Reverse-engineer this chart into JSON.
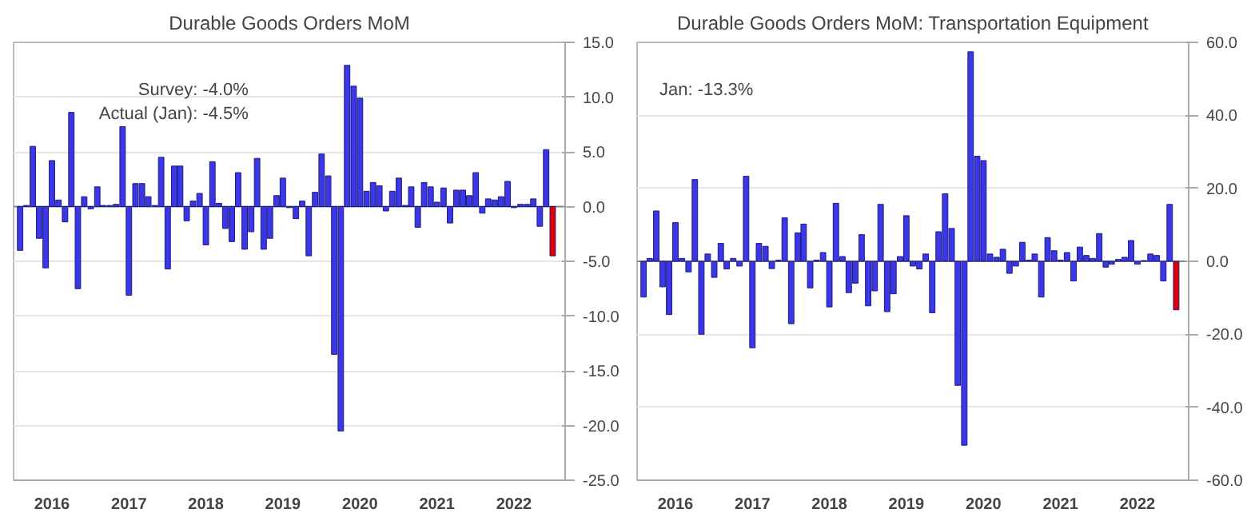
{
  "chart_data": [
    {
      "type": "bar",
      "title": "Durable Goods Orders MoM",
      "annotations": [
        "Survey:  -4.0%",
        "Actual (Jan):  -4.5%"
      ],
      "x": [
        "2016-02",
        "2016-03",
        "2016-04",
        "2016-05",
        "2016-06",
        "2016-07",
        "2016-08",
        "2016-09",
        "2016-10",
        "2016-11",
        "2016-12",
        "2017-01",
        "2017-02",
        "2017-03",
        "2017-04",
        "2017-05",
        "2017-06",
        "2017-07",
        "2017-08",
        "2017-09",
        "2017-10",
        "2017-11",
        "2017-12",
        "2018-01",
        "2018-02",
        "2018-03",
        "2018-04",
        "2018-05",
        "2018-06",
        "2018-07",
        "2018-08",
        "2018-09",
        "2018-10",
        "2018-11",
        "2018-12",
        "2019-01",
        "2019-02",
        "2019-03",
        "2019-04",
        "2019-05",
        "2019-06",
        "2019-07",
        "2019-08",
        "2019-09",
        "2019-10",
        "2019-11",
        "2019-12",
        "2020-01",
        "2020-02",
        "2020-03",
        "2020-04",
        "2020-05",
        "2020-06",
        "2020-07",
        "2020-08",
        "2020-09",
        "2020-10",
        "2020-11",
        "2020-12",
        "2021-01",
        "2021-02",
        "2021-03",
        "2021-04",
        "2021-05",
        "2021-06",
        "2021-07",
        "2021-08",
        "2021-09",
        "2021-10",
        "2021-11",
        "2021-12",
        "2022-01",
        "2022-02",
        "2022-03",
        "2022-04",
        "2022-05",
        "2022-06",
        "2022-07",
        "2022-08",
        "2022-09",
        "2022-10",
        "2022-11",
        "2022-12",
        "2023-01"
      ],
      "values": [
        -4.0,
        0.1,
        5.5,
        -2.9,
        -5.6,
        4.2,
        0.6,
        -1.4,
        8.6,
        -7.5,
        0.9,
        -0.2,
        1.8,
        0.1,
        0.1,
        0.2,
        7.3,
        -8.1,
        2.1,
        2.1,
        0.9,
        0.1,
        4.5,
        -5.7,
        3.7,
        3.7,
        -1.3,
        0.5,
        1.2,
        -3.5,
        4.1,
        0.3,
        -2.0,
        -3.2,
        3.1,
        -3.9,
        -2.3,
        4.4,
        -3.9,
        -2.9,
        1.0,
        2.6,
        -0.1,
        -1.1,
        0.5,
        -4.5,
        1.3,
        4.8,
        2.8,
        -13.5,
        -20.5,
        12.9,
        11.0,
        9.9,
        1.4,
        2.2,
        1.9,
        -0.4,
        1.4,
        2.6,
        0.1,
        1.8,
        -1.9,
        2.2,
        1.8,
        0.4,
        1.7,
        -1.5,
        1.5,
        1.5,
        1.0,
        3.1,
        -0.6,
        0.7,
        0.6,
        0.9,
        2.3,
        -0.1,
        0.2,
        0.2,
        0.7,
        -1.8,
        5.2,
        -4.5
      ],
      "colors": [
        "#3c37e6",
        "#3c37e6",
        "#3c37e6",
        "#3c37e6",
        "#3c37e6",
        "#3c37e6",
        "#3c37e6",
        "#3c37e6",
        "#3c37e6",
        "#3c37e6",
        "#3c37e6",
        "#3c37e6",
        "#3c37e6",
        "#3c37e6",
        "#3c37e6",
        "#3c37e6",
        "#3c37e6",
        "#3c37e6",
        "#3c37e6",
        "#3c37e6",
        "#3c37e6",
        "#3c37e6",
        "#3c37e6",
        "#3c37e6",
        "#3c37e6",
        "#3c37e6",
        "#3c37e6",
        "#3c37e6",
        "#3c37e6",
        "#3c37e6",
        "#3c37e6",
        "#3c37e6",
        "#3c37e6",
        "#3c37e6",
        "#3c37e6",
        "#3c37e6",
        "#3c37e6",
        "#3c37e6",
        "#3c37e6",
        "#3c37e6",
        "#3c37e6",
        "#3c37e6",
        "#3c37e6",
        "#3c37e6",
        "#3c37e6",
        "#3c37e6",
        "#3c37e6",
        "#3c37e6",
        "#3c37e6",
        "#3c37e6",
        "#3c37e6",
        "#3c37e6",
        "#3c37e6",
        "#3c37e6",
        "#3c37e6",
        "#3c37e6",
        "#3c37e6",
        "#3c37e6",
        "#3c37e6",
        "#3c37e6",
        "#3c37e6",
        "#3c37e6",
        "#3c37e6",
        "#3c37e6",
        "#3c37e6",
        "#3c37e6",
        "#3c37e6",
        "#3c37e6",
        "#3c37e6",
        "#3c37e6",
        "#3c37e6",
        "#3c37e6",
        "#3c37e6",
        "#3c37e6",
        "#3c37e6",
        "#3c37e6",
        "#3c37e6",
        "#3c37e6",
        "#3c37e6",
        "#3c37e6",
        "#3c37e6",
        "#3c37e6",
        "#3c37e6",
        "#e00000"
      ],
      "xlim": [
        "2016-01",
        "2023-03"
      ],
      "xticks": [
        {
          "value": "2016-07",
          "label": "2016"
        },
        {
          "value": "2017-07",
          "label": "2017"
        },
        {
          "value": "2018-07",
          "label": "2018"
        },
        {
          "value": "2019-07",
          "label": "2019"
        },
        {
          "value": "2020-07",
          "label": "2020"
        },
        {
          "value": "2021-07",
          "label": "2021"
        },
        {
          "value": "2022-07",
          "label": "2022"
        }
      ],
      "ylim": [
        -25,
        15
      ],
      "yticks": [
        {
          "value": -25,
          "label": "-25.0"
        },
        {
          "value": -20,
          "label": "-20.0"
        },
        {
          "value": -15,
          "label": "-15.0"
        },
        {
          "value": -10,
          "label": "-10.0"
        },
        {
          "value": -5,
          "label": "-5.0"
        },
        {
          "value": 0,
          "label": "0.0"
        },
        {
          "value": 5,
          "label": "5.0"
        },
        {
          "value": 10,
          "label": "10.0"
        },
        {
          "value": 15,
          "label": "15.0"
        }
      ],
      "grid": "y"
    },
    {
      "type": "bar",
      "title": "Durable Goods Orders MoM: Transportation Equipment",
      "annotations": [
        "Jan:   -13.3%"
      ],
      "x": [
        "2016-02",
        "2016-03",
        "2016-04",
        "2016-05",
        "2016-06",
        "2016-07",
        "2016-08",
        "2016-09",
        "2016-10",
        "2016-11",
        "2016-12",
        "2017-01",
        "2017-02",
        "2017-03",
        "2017-04",
        "2017-05",
        "2017-06",
        "2017-07",
        "2017-08",
        "2017-09",
        "2017-10",
        "2017-11",
        "2017-12",
        "2018-01",
        "2018-02",
        "2018-03",
        "2018-04",
        "2018-05",
        "2018-06",
        "2018-07",
        "2018-08",
        "2018-09",
        "2018-10",
        "2018-11",
        "2018-12",
        "2019-01",
        "2019-02",
        "2019-03",
        "2019-04",
        "2019-05",
        "2019-06",
        "2019-07",
        "2019-08",
        "2019-09",
        "2019-10",
        "2019-11",
        "2019-12",
        "2020-01",
        "2020-02",
        "2020-03",
        "2020-04",
        "2020-05",
        "2020-06",
        "2020-07",
        "2020-08",
        "2020-09",
        "2020-10",
        "2020-11",
        "2020-12",
        "2021-01",
        "2021-02",
        "2021-03",
        "2021-04",
        "2021-05",
        "2021-06",
        "2021-07",
        "2021-08",
        "2021-09",
        "2021-10",
        "2021-11",
        "2021-12",
        "2022-01",
        "2022-02",
        "2022-03",
        "2022-04",
        "2022-05",
        "2022-06",
        "2022-07",
        "2022-08",
        "2022-09",
        "2022-10",
        "2022-11",
        "2022-12",
        "2023-01"
      ],
      "values": [
        -9.8,
        0.8,
        13.8,
        -7.0,
        -14.6,
        10.6,
        0.8,
        -2.9,
        22.4,
        -20.0,
        2.0,
        -4.4,
        4.9,
        -2.1,
        0.8,
        -1.3,
        23.3,
        -23.7,
        4.9,
        4.1,
        -2.0,
        0.3,
        11.9,
        -17.1,
        7.8,
        10.2,
        -7.3,
        0.3,
        2.4,
        -12.5,
        15.9,
        1.3,
        -8.6,
        -6.0,
        7.3,
        -12.2,
        -8.1,
        15.6,
        -13.8,
        -8.9,
        1.3,
        12.5,
        -1.3,
        -2.1,
        2.0,
        -14.1,
        8.1,
        18.5,
        9.0,
        -34.0,
        -50.4,
        57.4,
        28.8,
        27.6,
        2.0,
        1.1,
        3.3,
        -3.3,
        -1.3,
        5.2,
        0.3,
        2.0,
        -9.8,
        6.5,
        2.9,
        0.3,
        2.4,
        -5.4,
        3.9,
        1.6,
        0.8,
        7.6,
        -1.6,
        -0.8,
        0.5,
        1.1,
        5.7,
        -0.8,
        0.2,
        2.0,
        1.6,
        -5.4,
        15.6,
        -13.3
      ],
      "colors": [
        "#3c37e6",
        "#3c37e6",
        "#3c37e6",
        "#3c37e6",
        "#3c37e6",
        "#3c37e6",
        "#3c37e6",
        "#3c37e6",
        "#3c37e6",
        "#3c37e6",
        "#3c37e6",
        "#3c37e6",
        "#3c37e6",
        "#3c37e6",
        "#3c37e6",
        "#3c37e6",
        "#3c37e6",
        "#3c37e6",
        "#3c37e6",
        "#3c37e6",
        "#3c37e6",
        "#3c37e6",
        "#3c37e6",
        "#3c37e6",
        "#3c37e6",
        "#3c37e6",
        "#3c37e6",
        "#3c37e6",
        "#3c37e6",
        "#3c37e6",
        "#3c37e6",
        "#3c37e6",
        "#3c37e6",
        "#3c37e6",
        "#3c37e6",
        "#3c37e6",
        "#3c37e6",
        "#3c37e6",
        "#3c37e6",
        "#3c37e6",
        "#3c37e6",
        "#3c37e6",
        "#3c37e6",
        "#3c37e6",
        "#3c37e6",
        "#3c37e6",
        "#3c37e6",
        "#3c37e6",
        "#3c37e6",
        "#3c37e6",
        "#3c37e6",
        "#3c37e6",
        "#3c37e6",
        "#3c37e6",
        "#3c37e6",
        "#3c37e6",
        "#3c37e6",
        "#3c37e6",
        "#3c37e6",
        "#3c37e6",
        "#3c37e6",
        "#3c37e6",
        "#3c37e6",
        "#3c37e6",
        "#3c37e6",
        "#3c37e6",
        "#3c37e6",
        "#3c37e6",
        "#3c37e6",
        "#3c37e6",
        "#3c37e6",
        "#3c37e6",
        "#3c37e6",
        "#3c37e6",
        "#3c37e6",
        "#3c37e6",
        "#3c37e6",
        "#3c37e6",
        "#3c37e6",
        "#3c37e6",
        "#3c37e6",
        "#3c37e6",
        "#3c37e6",
        "#e00000"
      ],
      "xlim": [
        "2016-01",
        "2023-03"
      ],
      "xticks": [
        {
          "value": "2016-07",
          "label": "2016"
        },
        {
          "value": "2017-07",
          "label": "2017"
        },
        {
          "value": "2018-07",
          "label": "2018"
        },
        {
          "value": "2019-07",
          "label": "2019"
        },
        {
          "value": "2020-07",
          "label": "2020"
        },
        {
          "value": "2021-07",
          "label": "2021"
        },
        {
          "value": "2022-07",
          "label": "2022"
        }
      ],
      "ylim": [
        -60,
        60
      ],
      "yticks": [
        {
          "value": -60,
          "label": "-60.0"
        },
        {
          "value": -40,
          "label": "-40.0"
        },
        {
          "value": -20,
          "label": "-20.0"
        },
        {
          "value": 0,
          "label": "0.0"
        },
        {
          "value": 20,
          "label": "20.0"
        },
        {
          "value": 40,
          "label": "40.0"
        },
        {
          "value": 60,
          "label": "60.0"
        }
      ],
      "grid": "y"
    }
  ]
}
